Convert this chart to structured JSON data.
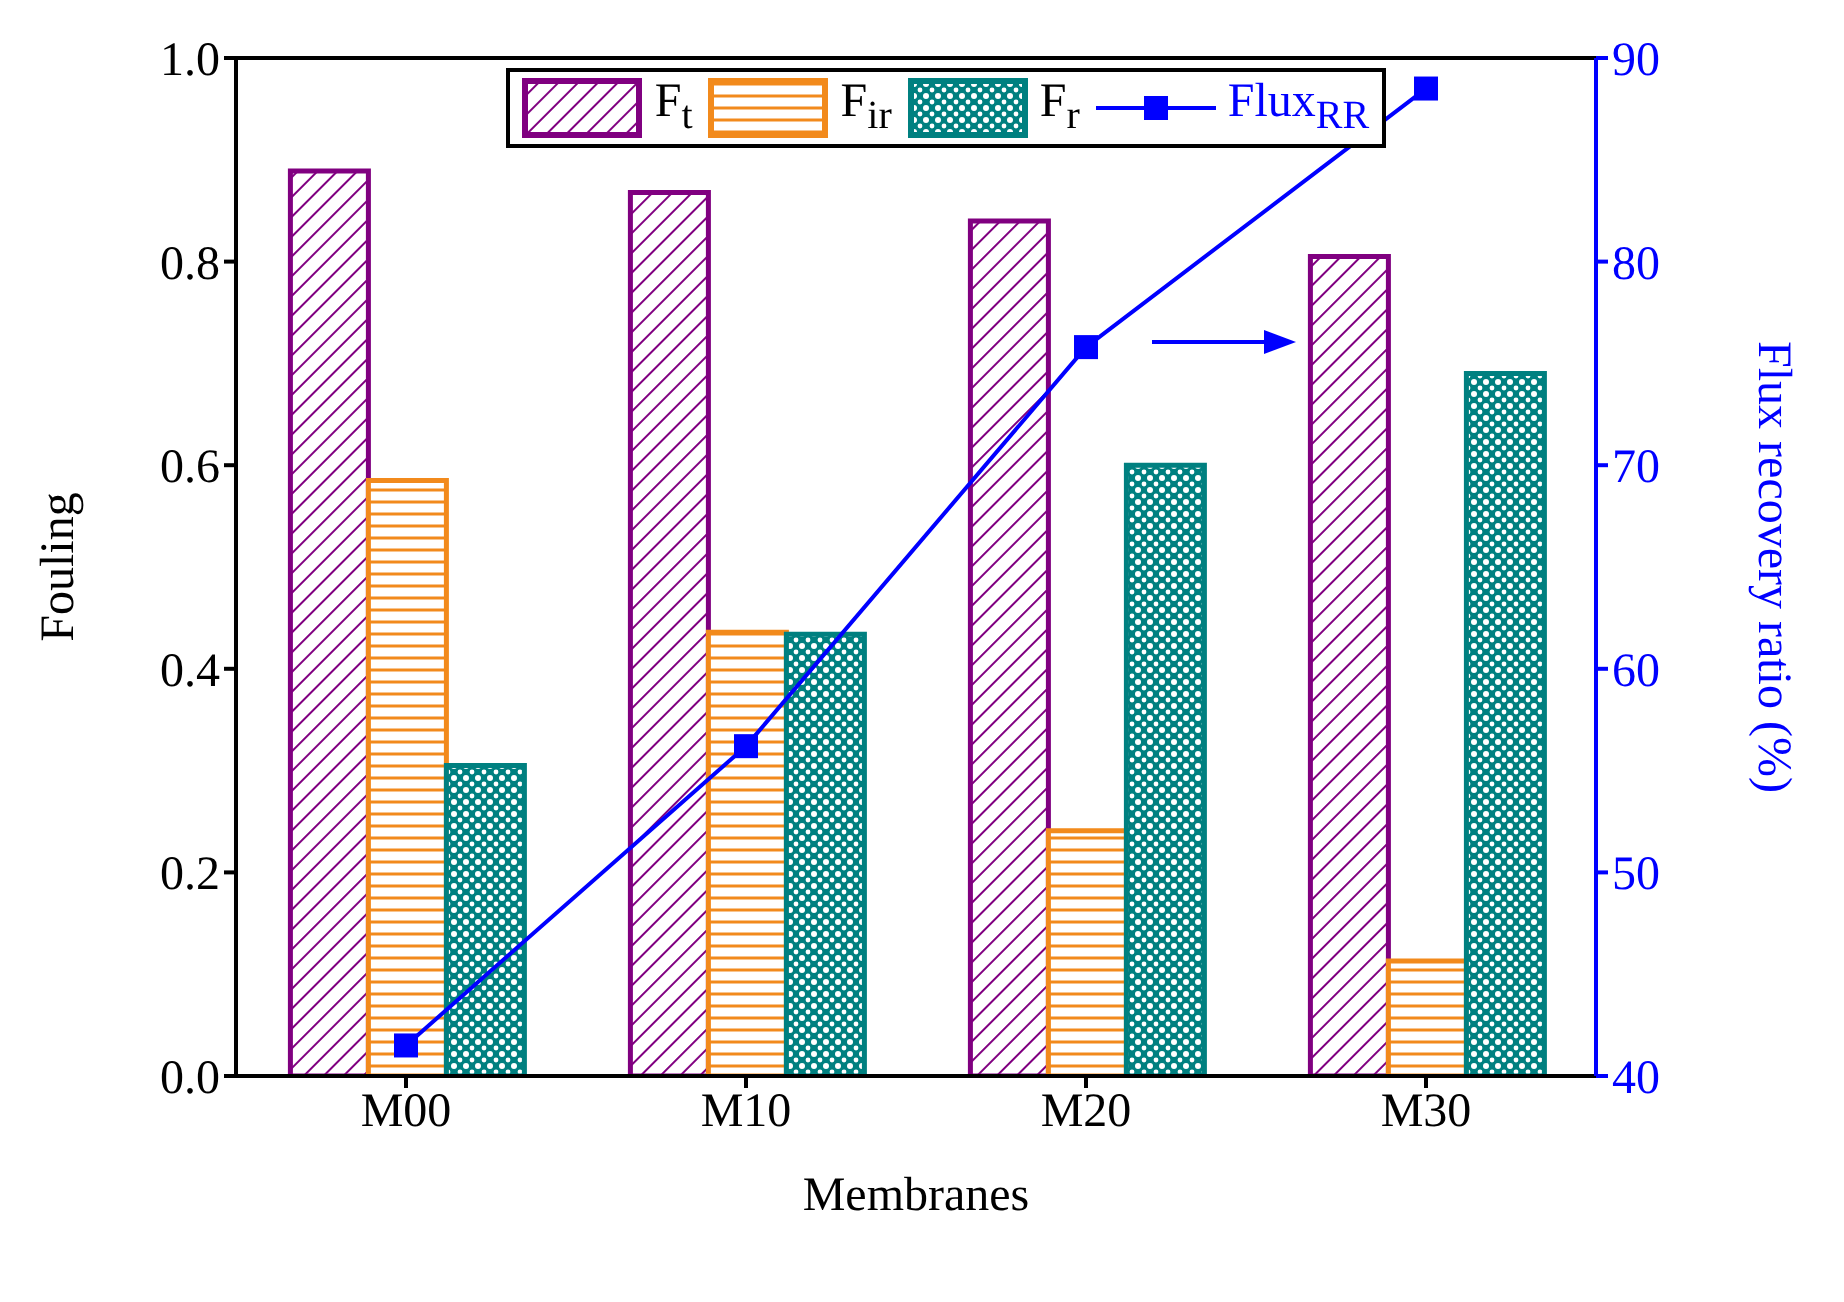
{
  "chart_data": {
    "type": "bar",
    "xlabel": "Membranes",
    "ylabel": "Fouling",
    "y2label": "Flux recovery ratio (%)",
    "categories": [
      "M00",
      "M10",
      "M20",
      "M30"
    ],
    "series": [
      {
        "name": "F$_{t}$",
        "color": "#800080",
        "values": [
          0.889,
          0.868,
          0.84,
          0.805
        ]
      },
      {
        "name": "F$_{ir}$",
        "color": "#f28a1c",
        "values": [
          0.585,
          0.436,
          0.241,
          0.113
        ]
      },
      {
        "name": "F$_{r}$",
        "color": "#008080",
        "values": [
          0.305,
          0.434,
          0.6,
          0.69
        ]
      },
      {
        "name": "Flux$_{RR}$",
        "type": "line",
        "axis": "y2",
        "color": "#0000ff",
        "marker": "square",
        "values": [
          41.5,
          56.2,
          75.8,
          88.5
        ]
      }
    ],
    "ylim": [
      0,
      1
    ],
    "yticks": [
      {
        "value": 0,
        "label": "0.0"
      },
      0.2,
      0.4,
      0.6,
      0.8,
      {
        "value": 1,
        "label": "1.0"
      }
    ],
    "y2lim": [
      40,
      90
    ],
    "y2ticks": [
      40,
      50,
      60,
      70,
      80,
      90
    ],
    "legend": "top"
  }
}
